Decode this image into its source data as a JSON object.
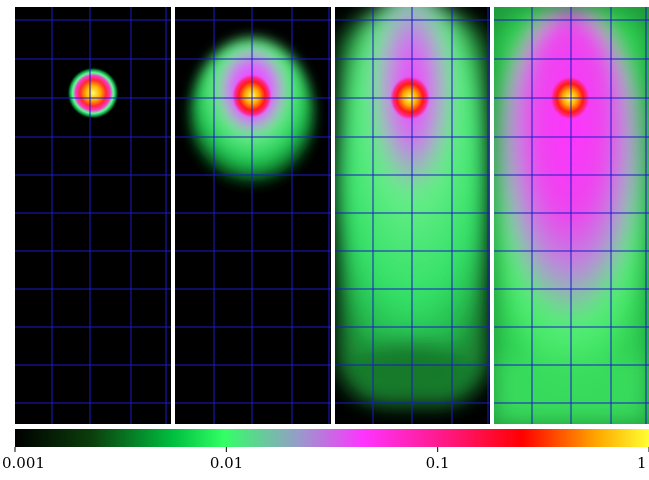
{
  "figure": {
    "panels": [
      {
        "name": "panel-1"
      },
      {
        "name": "panel-2"
      },
      {
        "name": "panel-3"
      },
      {
        "name": "panel-4"
      }
    ],
    "grid_color": "#1a1ac8",
    "separator_color": "#ffffff",
    "colormap": [
      "#000000",
      "#0b3d0b",
      "#00c040",
      "#33ff66",
      "#9999cc",
      "#ff33ff",
      "#ff1a8c",
      "#ff0000",
      "#ffaa00",
      "#ffff33"
    ],
    "colorbar": {
      "scale": "log",
      "range": [
        0.001,
        1
      ],
      "tick_labels": [
        "0.001",
        "0.01",
        "0.1",
        "1"
      ]
    }
  }
}
